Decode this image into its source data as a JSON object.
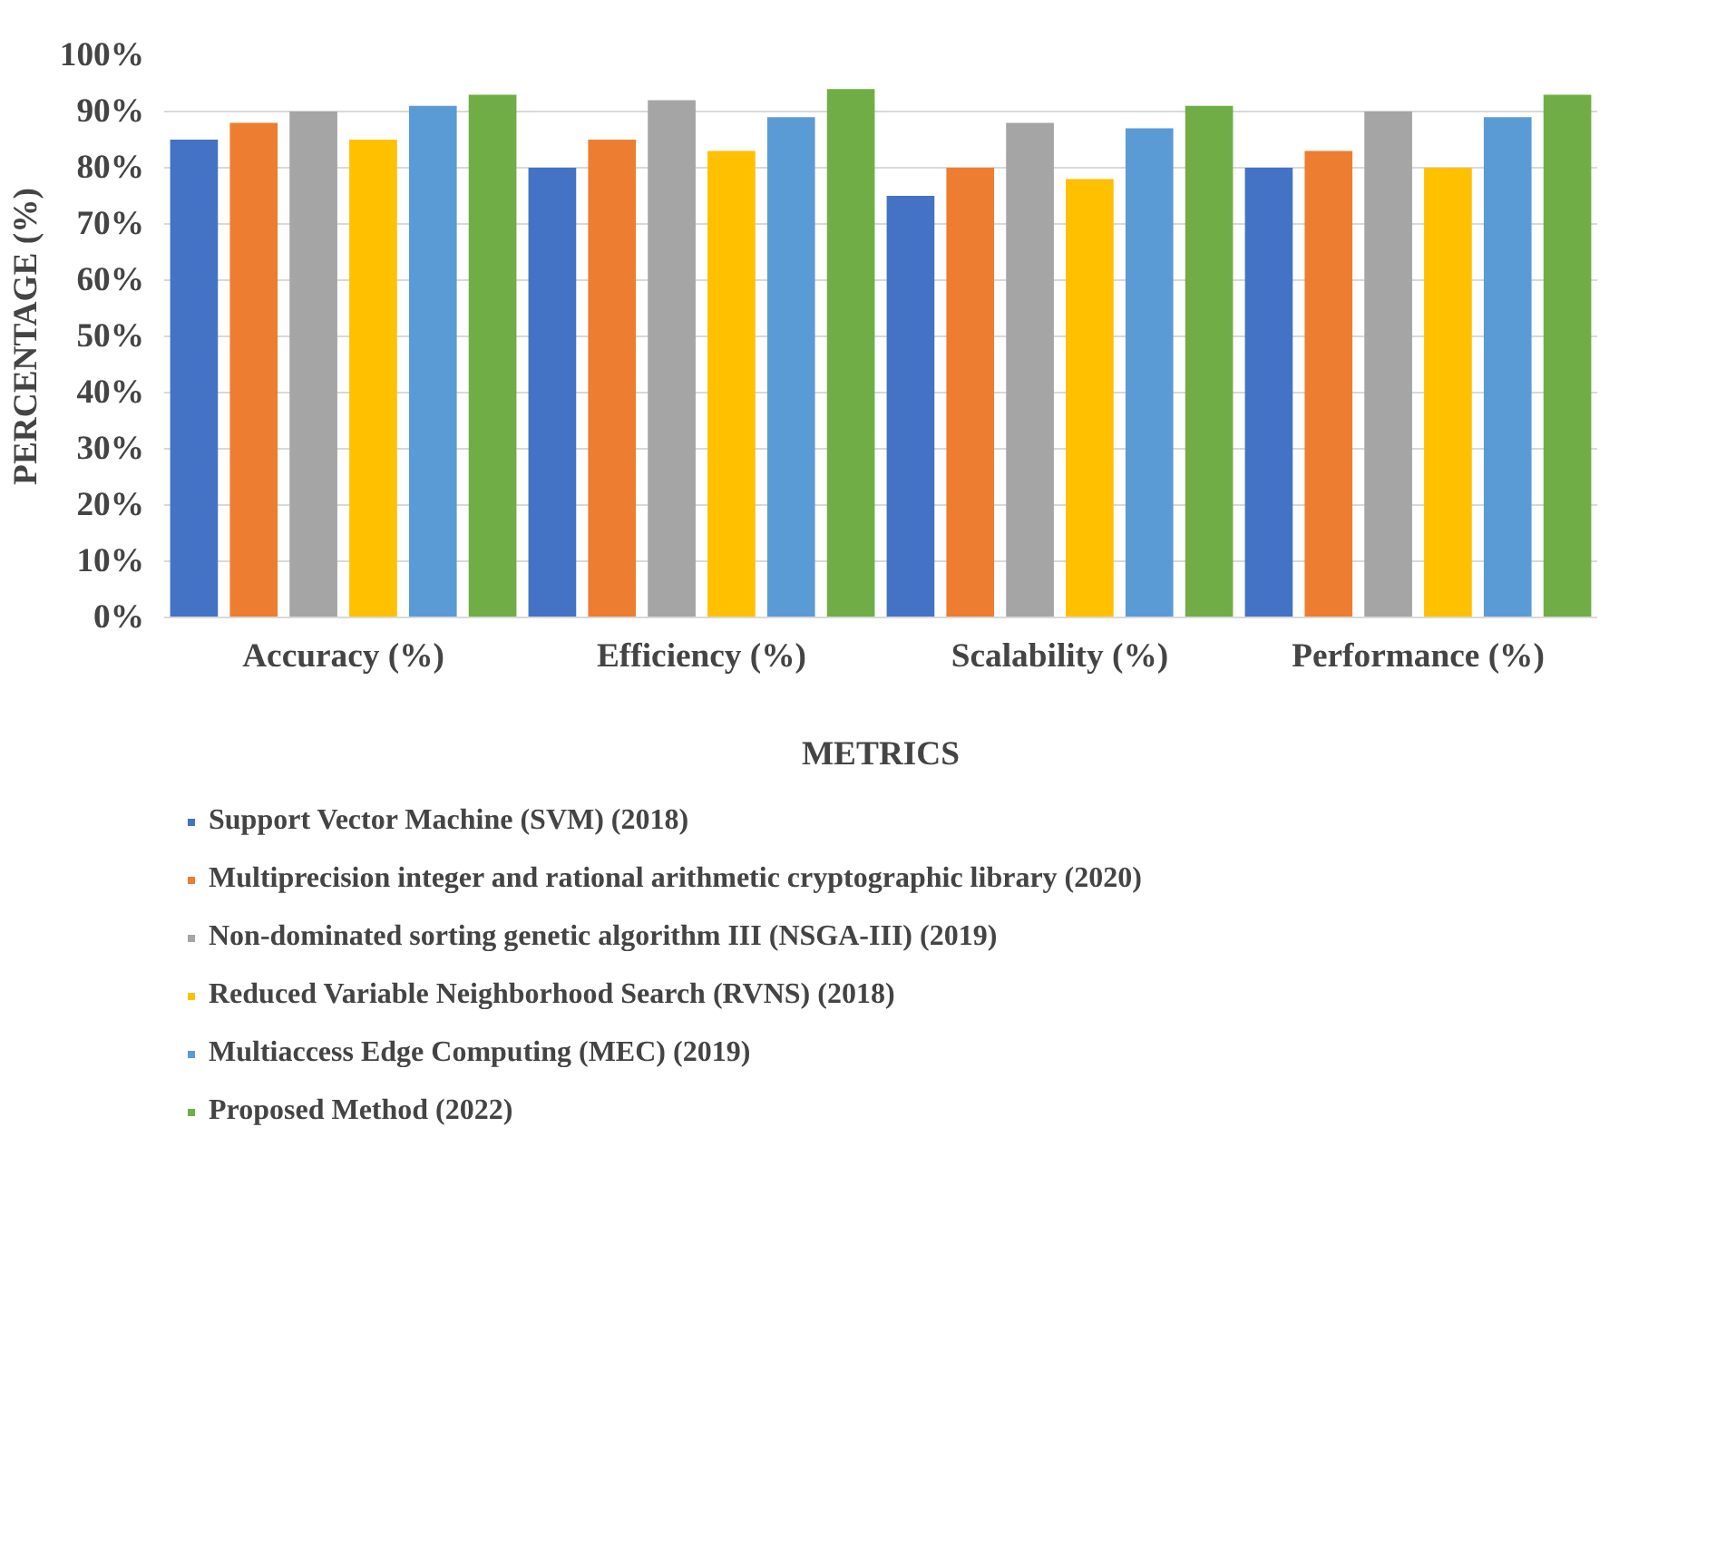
{
  "chart_data": {
    "type": "bar",
    "xlabel": "METRICS",
    "ylabel": "PERCENTAGE (%)",
    "categories": [
      "Accuracy (%)",
      "Efficiency (%)",
      "Scalability (%)",
      "Performance (%)"
    ],
    "series": [
      {
        "name": "Support Vector Machine (SVM) (2018)",
        "color": "#4472c4",
        "values": [
          85,
          80,
          75,
          80
        ]
      },
      {
        "name": "Multiprecision integer and rational arithmetic cryptographic library (2020)",
        "color": "#ed7d31",
        "values": [
          88,
          85,
          80,
          83
        ]
      },
      {
        "name": "Non-dominated sorting genetic algorithm III (NSGA-III) (2019)",
        "color": "#a5a5a5",
        "values": [
          90,
          92,
          88,
          90
        ]
      },
      {
        "name": "Reduced Variable Neighborhood Search (RVNS) (2018)",
        "color": "#ffc000",
        "values": [
          85,
          83,
          78,
          80
        ]
      },
      {
        "name": "Multiaccess Edge Computing (MEC) (2019)",
        "color": "#5b9bd5",
        "values": [
          91,
          89,
          87,
          89
        ]
      },
      {
        "name": "Proposed Method (2022)",
        "color": "#70ad47",
        "values": [
          93,
          94,
          91,
          93
        ]
      }
    ],
    "ylim": [
      0,
      100
    ],
    "yticks": [
      {
        "value": 0,
        "label": "0%"
      },
      {
        "value": 10,
        "label": "10%"
      },
      {
        "value": 20,
        "label": "20%"
      },
      {
        "value": 30,
        "label": "30%"
      },
      {
        "value": 40,
        "label": "40%"
      },
      {
        "value": 50,
        "label": "50%"
      },
      {
        "value": 60,
        "label": "60%"
      },
      {
        "value": 70,
        "label": "70%"
      },
      {
        "value": 80,
        "label": "80%"
      },
      {
        "value": 90,
        "label": "90%"
      },
      {
        "value": 100,
        "label": "100%"
      }
    ],
    "grid": "y",
    "legend": "bottom"
  }
}
